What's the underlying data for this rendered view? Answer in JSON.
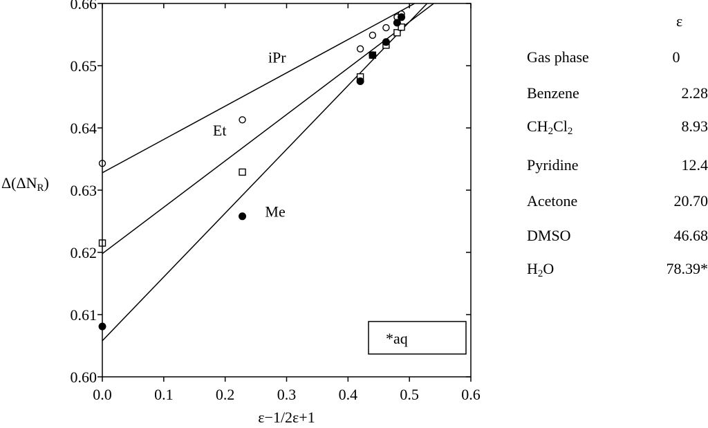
{
  "chart_data": {
    "type": "scatter",
    "xlabel": "ε−1/2ε+1",
    "ylabel": "Δ(ΔN",
    "ylabel_sub": "R",
    "ylabel_end": ")",
    "xlim": [
      0.0,
      0.6
    ],
    "ylim": [
      0.6,
      0.66
    ],
    "x_ticks": [
      0.0,
      0.1,
      0.2,
      0.3,
      0.4,
      0.5,
      0.6
    ],
    "x_tick_labels": [
      "0.0",
      "0.1",
      "0.2",
      "0.3",
      "0.4",
      "0.5",
      "0.6"
    ],
    "y_ticks": [
      0.6,
      0.61,
      0.62,
      0.63,
      0.64,
      0.65,
      0.66
    ],
    "y_tick_labels": [
      "0.60",
      "0.61",
      "0.62",
      "0.63",
      "0.64",
      "0.65",
      "0.66"
    ],
    "series": [
      {
        "name": "iPr",
        "marker": "open-circle",
        "label_at": [
          0.27,
          0.6505
        ],
        "fit": {
          "intercept": 0.6328,
          "slope": 0.0535
        },
        "points": [
          [
            0.0,
            0.6343
          ],
          [
            0.228,
            0.6413
          ],
          [
            0.42,
            0.6527
          ],
          [
            0.44,
            0.6549
          ],
          [
            0.462,
            0.6561
          ],
          [
            0.48,
            0.6578
          ],
          [
            0.487,
            0.6583
          ]
        ]
      },
      {
        "name": "Et",
        "marker": "open-square",
        "label_at": [
          0.18,
          0.6388
        ],
        "fit": {
          "intercept": 0.6198,
          "slope": 0.0745
        },
        "points": [
          [
            0.0,
            0.6215
          ],
          [
            0.228,
            0.6329
          ],
          [
            0.42,
            0.6482
          ],
          [
            0.44,
            0.6517
          ],
          [
            0.462,
            0.6533
          ],
          [
            0.48,
            0.6553
          ],
          [
            0.487,
            0.6562
          ]
        ]
      },
      {
        "name": "Me",
        "marker": "filled-circle",
        "label_at": [
          0.265,
          0.6257
        ],
        "fit": {
          "intercept": 0.6058,
          "slope": 0.1025
        },
        "points": [
          [
            0.0,
            0.6081
          ],
          [
            0.228,
            0.6258
          ],
          [
            0.42,
            0.6475
          ],
          [
            0.44,
            0.6517
          ],
          [
            0.462,
            0.6538
          ],
          [
            0.48,
            0.6569
          ],
          [
            0.487,
            0.6578
          ]
        ]
      }
    ],
    "annotation_box": "*aq"
  },
  "legend": {
    "header": "ε",
    "rows": [
      {
        "name": "Gas phase",
        "eps": "0"
      },
      {
        "name": "Benzene",
        "eps": "2.28"
      },
      {
        "name": "CH",
        "name_sub1": "2",
        "name_mid": "Cl",
        "name_sub2": "2",
        "eps": "8.93"
      },
      {
        "name": "Pyridine",
        "eps": "12.4"
      },
      {
        "name": "Acetone",
        "eps": "20.70"
      },
      {
        "name": "DMSO",
        "eps": "46.68"
      },
      {
        "name": "H",
        "name_sub1": "2",
        "name_mid": "O",
        "eps": "78.39*"
      }
    ]
  }
}
